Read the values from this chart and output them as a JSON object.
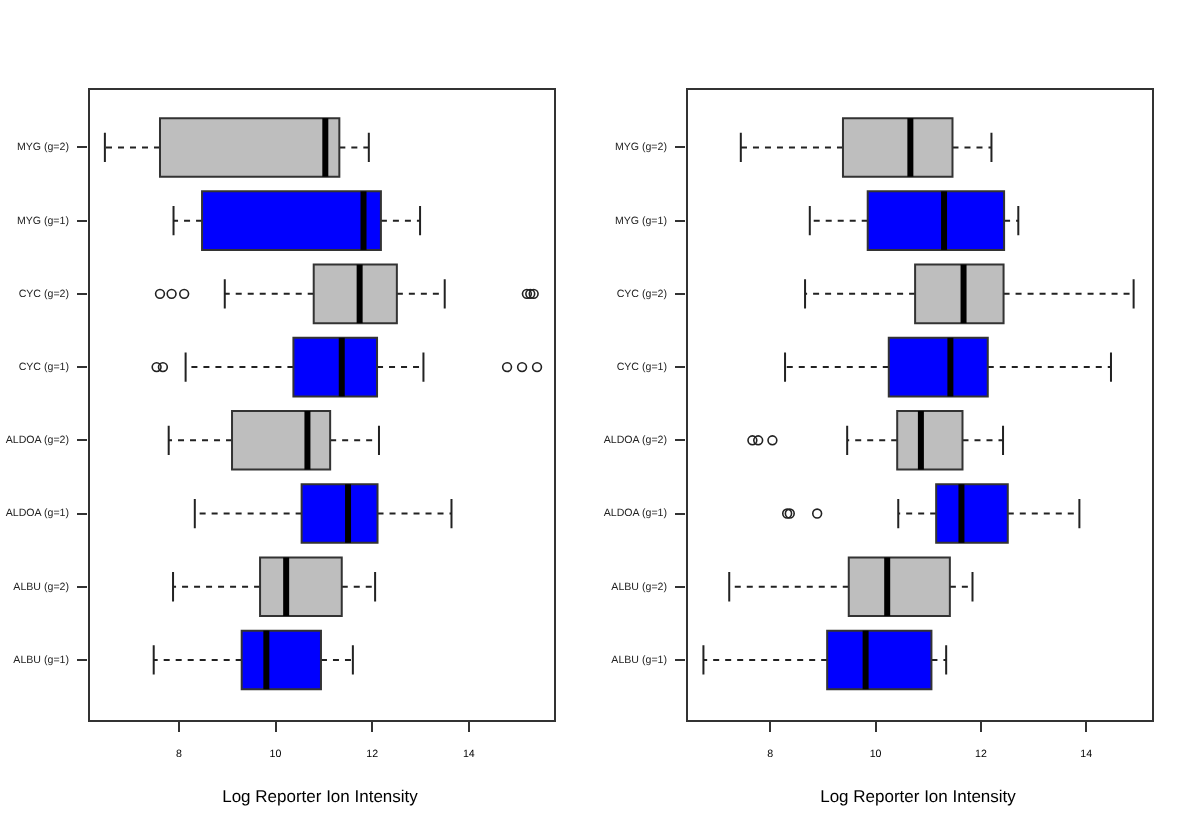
{
  "chart_data": [
    {
      "type": "box",
      "orientation": "horizontal",
      "xlabel": "Log Reporter Ion Intensity",
      "categories": [
        "MYG (g=2)",
        "MYG (g=1)",
        "CYC (g=2)",
        "CYC (g=1)",
        "ALDOA (g=2)",
        "ALDOA (g=1)",
        "ALBU (g=2)",
        "ALBU (g=1)"
      ],
      "colors": [
        "#bebebe",
        "#0000ff",
        "#bebebe",
        "#0000ff",
        "#bebebe",
        "#0000ff",
        "#bebebe",
        "#0000ff"
      ],
      "boxes": [
        {
          "low": 6.47,
          "q1": 7.61,
          "median": 11.03,
          "q3": 11.32,
          "high": 11.93
        },
        {
          "low": 7.89,
          "q1": 8.48,
          "median": 11.82,
          "q3": 12.18,
          "high": 12.99
        },
        {
          "low": 8.95,
          "q1": 10.79,
          "median": 11.74,
          "q3": 12.51,
          "high": 13.5,
          "outliers": [
            7.61,
            7.85,
            8.11,
            15.2,
            15.27,
            15.34
          ]
        },
        {
          "low": 8.14,
          "q1": 10.37,
          "median": 11.37,
          "q3": 12.1,
          "high": 13.06,
          "outliers": [
            7.54,
            7.67,
            14.79,
            15.1,
            15.41
          ]
        },
        {
          "low": 7.79,
          "q1": 9.1,
          "median": 10.66,
          "q3": 11.13,
          "high": 12.14
        },
        {
          "low": 8.33,
          "q1": 10.54,
          "median": 11.5,
          "q3": 12.11,
          "high": 13.64
        },
        {
          "low": 7.88,
          "q1": 9.68,
          "median": 10.22,
          "q3": 11.37,
          "high": 12.06
        },
        {
          "low": 7.48,
          "q1": 9.3,
          "median": 9.81,
          "q3": 10.94,
          "high": 11.6
        }
      ],
      "xlim": [
        6.1,
        15.74
      ],
      "xticks": [
        8,
        10,
        12,
        14
      ]
    },
    {
      "type": "box",
      "orientation": "horizontal",
      "xlabel": "Log Reporter Ion Intensity",
      "categories": [
        "MYG (g=2)",
        "MYG (g=1)",
        "CYC (g=2)",
        "CYC (g=1)",
        "ALDOA (g=2)",
        "ALDOA (g=1)",
        "ALBU (g=2)",
        "ALBU (g=1)"
      ],
      "colors": [
        "#bebebe",
        "#0000ff",
        "#bebebe",
        "#0000ff",
        "#bebebe",
        "#0000ff",
        "#bebebe",
        "#0000ff"
      ],
      "boxes": [
        {
          "low": 7.44,
          "q1": 9.38,
          "median": 10.66,
          "q3": 11.46,
          "high": 12.2
        },
        {
          "low": 8.75,
          "q1": 9.85,
          "median": 11.3,
          "q3": 12.44,
          "high": 12.71
        },
        {
          "low": 8.66,
          "q1": 10.75,
          "median": 11.67,
          "q3": 12.43,
          "high": 14.9
        },
        {
          "low": 8.28,
          "q1": 10.25,
          "median": 11.42,
          "q3": 12.13,
          "high": 14.47
        },
        {
          "low": 9.46,
          "q1": 10.41,
          "median": 10.86,
          "q3": 11.65,
          "high": 12.42,
          "outliers": [
            7.66,
            7.77,
            8.04
          ]
        },
        {
          "low": 10.43,
          "q1": 11.15,
          "median": 11.63,
          "q3": 12.51,
          "high": 13.87,
          "outliers": [
            8.32,
            8.37,
            8.89
          ]
        },
        {
          "low": 7.22,
          "q1": 9.49,
          "median": 10.22,
          "q3": 11.41,
          "high": 11.84
        },
        {
          "low": 6.73,
          "q1": 9.08,
          "median": 9.81,
          "q3": 11.06,
          "high": 11.34
        }
      ],
      "xlim": [
        6.38,
        15.23
      ],
      "xticks": [
        8,
        10,
        12,
        14
      ]
    }
  ]
}
